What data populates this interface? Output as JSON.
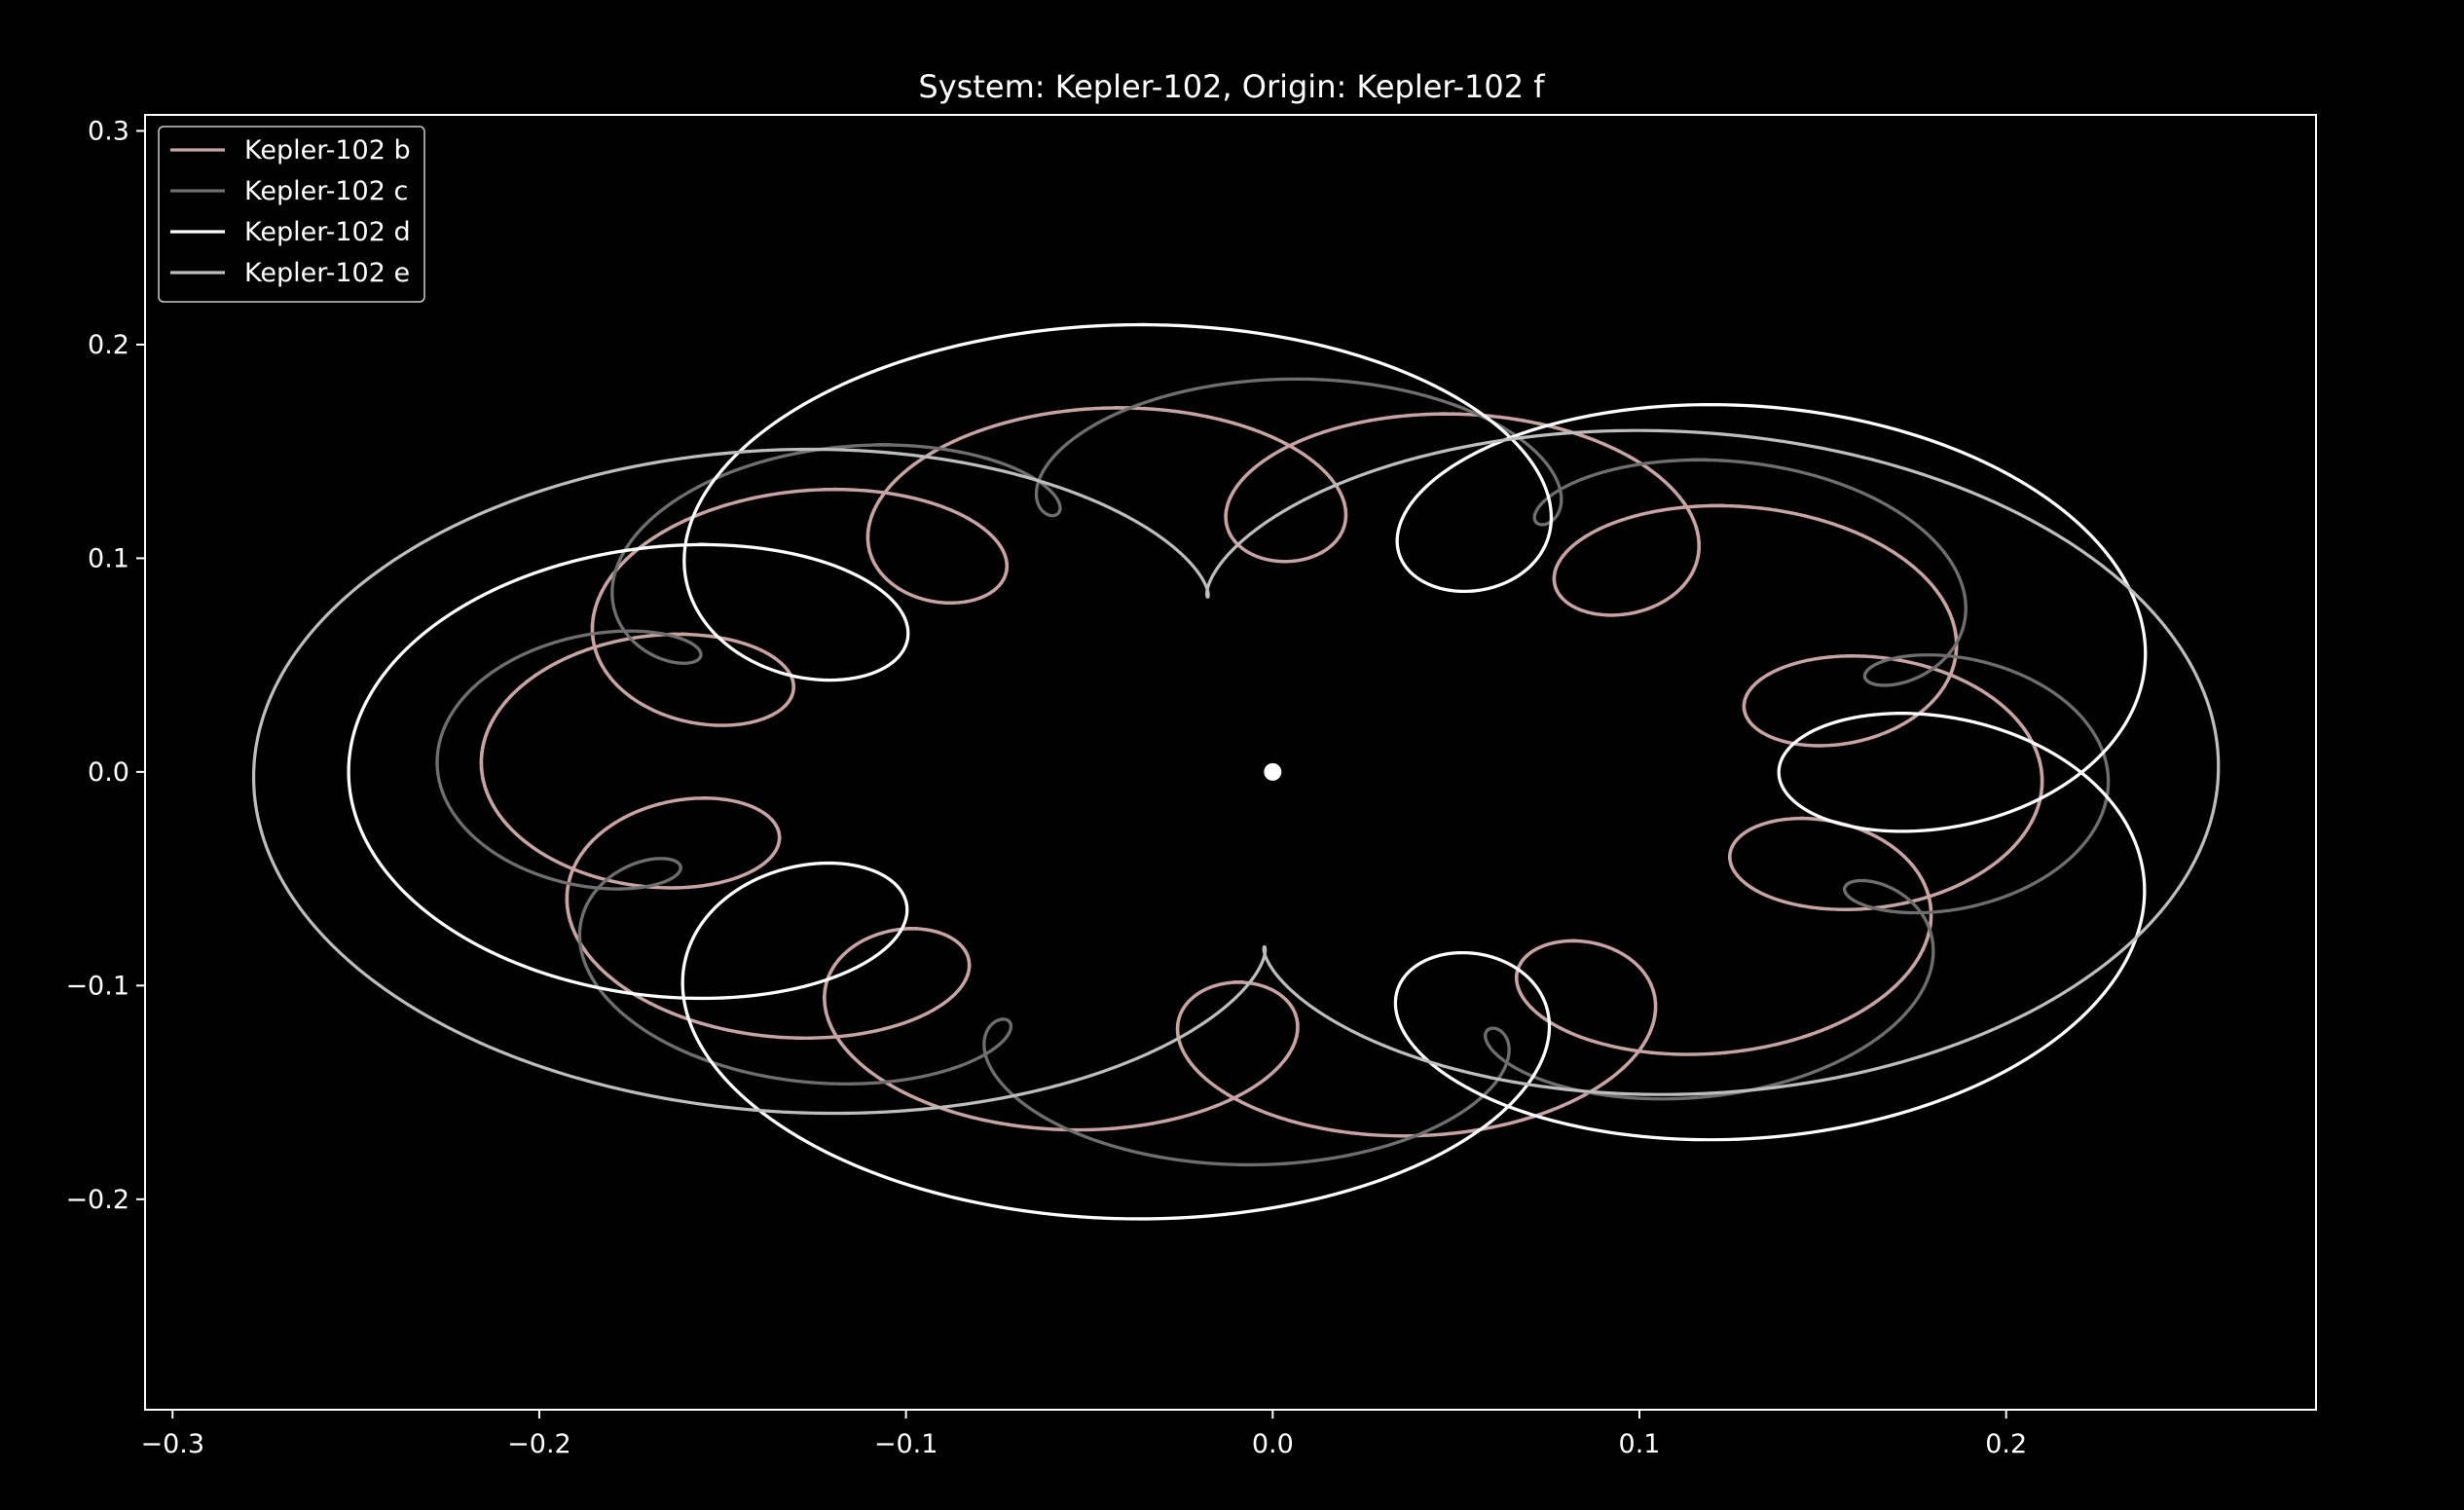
{
  "chart_data": {
    "type": "line",
    "title": "System: Kepler-102, Origin: Kepler-102 f",
    "xlabel": "",
    "ylabel": "",
    "xlim": [
      -0.3075,
      0.2845
    ],
    "ylim": [
      -0.2985,
      0.3075
    ],
    "xticks": [
      -0.3,
      -0.2,
      -0.1,
      0.0,
      0.1,
      0.2
    ],
    "xtick_labels": [
      "−0.3",
      "−0.2",
      "−0.1",
      "0.0",
      "0.1",
      "0.2"
    ],
    "yticks": [
      0.3,
      0.2,
      0.1,
      0.0,
      -0.1,
      -0.2
    ],
    "ytick_labels": [
      "0.3",
      "0.2",
      "0.1",
      "0.0",
      "−0.1",
      "−0.2"
    ],
    "grid": false,
    "legend_position": "upper-left",
    "background": "#000000",
    "origin_marker": {
      "x": 0.0,
      "y": 0.0,
      "color": "#ffffff"
    },
    "series": [
      {
        "name": "Kepler-102 b",
        "color": "#c9a3a3",
        "type": "epicycle",
        "center": [
          -0.003,
          0.0
        ],
        "R": 0.175,
        "k": 0.78,
        "r": 0.038,
        "loops": 11,
        "phase": 3.1
      },
      {
        "name": "Kepler-102 c",
        "color": "#6e6e6e",
        "type": "epicycle",
        "center": [
          0.0,
          0.0
        ],
        "R": 0.2,
        "k": 0.78,
        "r": 0.028,
        "loops": 9,
        "phase": 3.1
      },
      {
        "name": "Kepler-102 d",
        "color": "#ffffff",
        "type": "epicycle",
        "center": [
          0.005,
          0.0
        ],
        "R": 0.195,
        "k": 0.78,
        "r": 0.062,
        "loops": 6,
        "phase": 3.14
      },
      {
        "name": "Kepler-102 e",
        "color": "#bdbdbd",
        "type": "epicycle",
        "center": [
          -0.01,
          0.0
        ],
        "R": 0.2,
        "k": 0.75,
        "r": 0.068,
        "loops": 3,
        "phase": 3.2
      }
    ]
  }
}
